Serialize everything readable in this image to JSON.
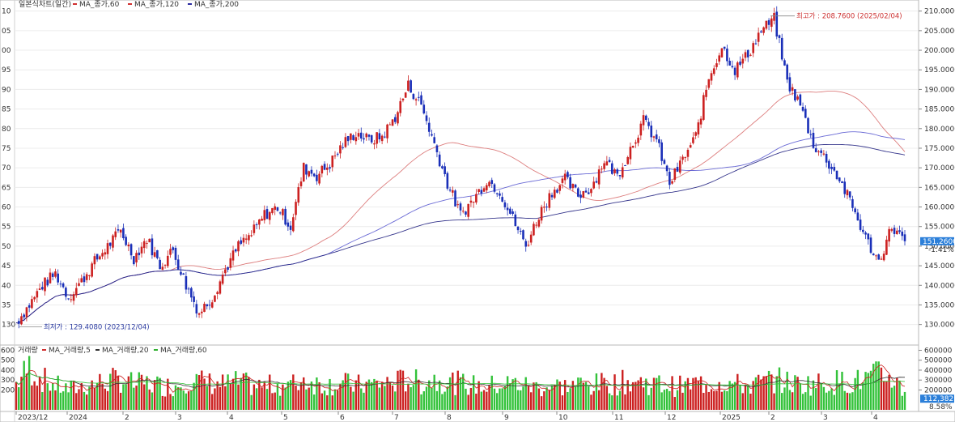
{
  "chart_data": {
    "type": "candlestick",
    "title": "일본식차트(일간)",
    "legend": {
      "placement": "top-left",
      "price_items": [
        {
          "label": "MA_종가,60",
          "color": "#d03030"
        },
        {
          "label": "MA_종가,120",
          "color": "#d03030"
        },
        {
          "label": "MA_종가,200",
          "color": "#2a2aa0"
        }
      ],
      "volume_title": "거래량",
      "volume_items": [
        {
          "label": "MA_거래량,5",
          "color": "#d03030"
        },
        {
          "label": "MA_거래량,20",
          "color": "#333333"
        },
        {
          "label": "MA_거래량,60",
          "color": "#30b030"
        }
      ]
    },
    "colors": {
      "up": "#cc2020",
      "down": "#1a2fb8",
      "ma60": "#d97070",
      "ma120": "#5a5ad0",
      "ma200": "#202080",
      "vol_up": "#cc2020",
      "vol_down": "#33c23a",
      "badge": "#2b7fd9"
    },
    "x_ticks": [
      "2023/12",
      "2024",
      "2",
      "3",
      "4",
      "5",
      "6",
      "7",
      "8",
      "9",
      "10",
      "11",
      "12",
      "2025",
      "2",
      "3",
      "4"
    ],
    "price_axis": {
      "ylim": [
        126,
        212
      ],
      "ticks": [
        130,
        135,
        140,
        145,
        150,
        155,
        160,
        165,
        170,
        175,
        180,
        185,
        190,
        195,
        200,
        205,
        210
      ],
      "tick_labels": [
        "130.0000",
        "135.0000",
        "140.0000",
        "145.0000",
        "150.0000",
        "155.0000",
        "160.0000",
        "165.0000",
        "170.0000",
        "175.0000",
        "180.0000",
        "185.0000",
        "190.0000",
        "195.0000",
        "200.0000",
        "205.0000",
        "210.0000"
      ],
      "left_labels": [
        "130",
        "35",
        "40",
        "45",
        "50",
        "55",
        "60",
        "65",
        "70",
        "75",
        "80",
        "85",
        "90",
        "95",
        "00",
        "05",
        "10"
      ]
    },
    "volume_axis": {
      "ylim": [
        0,
        620000
      ],
      "ticks": [
        200000,
        300000,
        400000,
        500000,
        600000
      ],
      "tick_labels": [
        "200000",
        "300000",
        "400000",
        "500000",
        "600000"
      ],
      "left_labels": [
        "200",
        "300",
        "400",
        "500",
        "600"
      ]
    },
    "annotations": {
      "high": {
        "label": "최고가 : 208.7600 (2025/02/04)",
        "value": 208.76
      },
      "low": {
        "label": "최저가 : 129.4080 (2023/12/04)",
        "value": 129.408
      }
    },
    "last_price": {
      "value": "151.2600",
      "change": "-1.41%"
    },
    "last_volume": {
      "value": "112,382",
      "change": "8.58%"
    },
    "closes_weekly": [
      130.5,
      135,
      140,
      143,
      137,
      141,
      146,
      150,
      154,
      147,
      152,
      145,
      149,
      140,
      133,
      137,
      144,
      150,
      153,
      158,
      160,
      155,
      170,
      168,
      171,
      176,
      179,
      177,
      178,
      183,
      191,
      186,
      176,
      166,
      158,
      162,
      167,
      164,
      157,
      150,
      158,
      164,
      167,
      163,
      165,
      172,
      168,
      175,
      182,
      177,
      166,
      172,
      178,
      193,
      201,
      195,
      199,
      205,
      208,
      192,
      186,
      176,
      172,
      167,
      160,
      152,
      146,
      155,
      151.26
    ],
    "volume_weekly": [
      260000,
      420000,
      300000,
      240000,
      200000,
      230000,
      260000,
      280000,
      300000,
      250000,
      260000,
      240000,
      230000,
      300000,
      280000,
      260000,
      250000,
      270000,
      240000,
      230000,
      250000,
      240000,
      300000,
      260000,
      250000,
      260000,
      240000,
      250000,
      260000,
      270000,
      300000,
      260000,
      300000,
      280000,
      260000,
      240000,
      230000,
      250000,
      260000,
      240000,
      220000,
      240000,
      230000,
      250000,
      240000,
      260000,
      260000,
      280000,
      270000,
      250000,
      240000,
      230000,
      260000,
      260000,
      280000,
      250000,
      240000,
      260000,
      300000,
      270000,
      250000,
      260000,
      260000,
      280000,
      270000,
      300000,
      340000,
      320000,
      180000
    ]
  }
}
